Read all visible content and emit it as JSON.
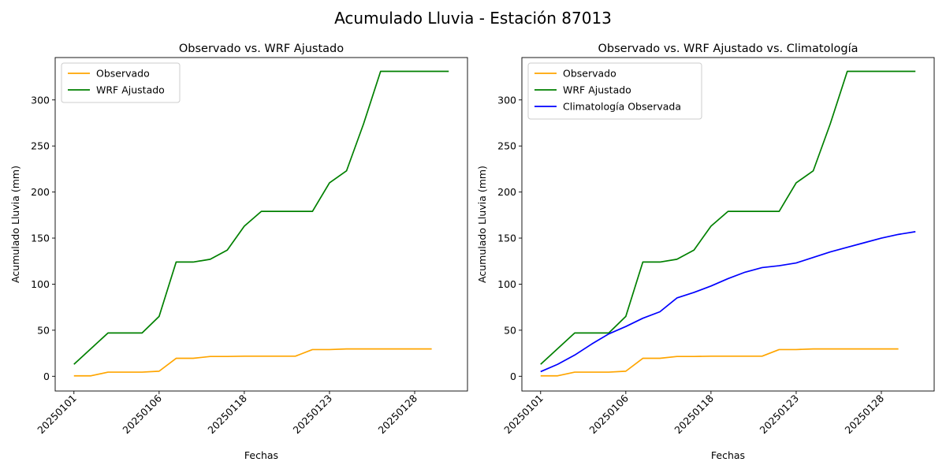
{
  "figure": {
    "suptitle": "Acumulado Lluvia - Estación 87013"
  },
  "chart_data": [
    {
      "type": "line",
      "title": "Observado vs. WRF Ajustado",
      "xlabel": "Fechas",
      "ylabel": "Acumulado Lluvia (mm)",
      "ylim": [
        -16,
        346
      ],
      "xlim": [
        -1.1,
        23.1
      ],
      "yticks": [
        0,
        50,
        100,
        150,
        200,
        250,
        300
      ],
      "xticks": [
        {
          "pos": 0,
          "label": "20250101"
        },
        {
          "pos": 5,
          "label": "20250106"
        },
        {
          "pos": 10,
          "label": "20250118"
        },
        {
          "pos": 15,
          "label": "20250123"
        },
        {
          "pos": 20,
          "label": "20250128"
        }
      ],
      "legend": "top-left",
      "grid": false,
      "series": [
        {
          "name": "Observado",
          "color": "#ffa500",
          "x": [
            0,
            1,
            2,
            3,
            4,
            5,
            6,
            7,
            8,
            9,
            10,
            11,
            12,
            13,
            14,
            15,
            16,
            17,
            18,
            19,
            20,
            21
          ],
          "y": [
            0.5,
            0.5,
            4.5,
            4.5,
            4.5,
            5.5,
            19.5,
            19.5,
            21.5,
            21.5,
            21.8,
            21.8,
            21.8,
            21.8,
            29,
            29,
            29.7,
            29.7,
            29.7,
            29.7,
            29.7,
            29.7
          ]
        },
        {
          "name": "WRF Ajustado",
          "color": "#008000",
          "x": [
            0,
            1,
            2,
            3,
            4,
            5,
            6,
            7,
            8,
            9,
            10,
            11,
            12,
            13,
            14,
            15,
            16,
            17,
            18,
            19,
            20,
            21,
            22
          ],
          "y": [
            13,
            30,
            47,
            47,
            47,
            65,
            124,
            124,
            127,
            137,
            163,
            179,
            179,
            179,
            179,
            210,
            223,
            274,
            331,
            331,
            331,
            331,
            331
          ]
        }
      ]
    },
    {
      "type": "line",
      "title": "Observado vs. WRF Ajustado vs. Climatología",
      "xlabel": "Fechas",
      "ylabel": "Acumulado Lluvia (mm)",
      "ylim": [
        -16,
        346
      ],
      "xlim": [
        -1.1,
        23.1
      ],
      "yticks": [
        0,
        50,
        100,
        150,
        200,
        250,
        300
      ],
      "xticks": [
        {
          "pos": 0,
          "label": "20250101"
        },
        {
          "pos": 5,
          "label": "20250106"
        },
        {
          "pos": 10,
          "label": "20250118"
        },
        {
          "pos": 15,
          "label": "20250123"
        },
        {
          "pos": 20,
          "label": "20250128"
        }
      ],
      "legend": "top-left",
      "grid": false,
      "series": [
        {
          "name": "Observado",
          "color": "#ffa500",
          "x": [
            0,
            1,
            2,
            3,
            4,
            5,
            6,
            7,
            8,
            9,
            10,
            11,
            12,
            13,
            14,
            15,
            16,
            17,
            18,
            19,
            20,
            21
          ],
          "y": [
            0.5,
            0.5,
            4.5,
            4.5,
            4.5,
            5.5,
            19.5,
            19.5,
            21.5,
            21.5,
            21.8,
            21.8,
            21.8,
            21.8,
            29,
            29,
            29.7,
            29.7,
            29.7,
            29.7,
            29.7,
            29.7
          ]
        },
        {
          "name": "WRF Ajustado",
          "color": "#008000",
          "x": [
            0,
            1,
            2,
            3,
            4,
            5,
            6,
            7,
            8,
            9,
            10,
            11,
            12,
            13,
            14,
            15,
            16,
            17,
            18,
            19,
            20,
            21,
            22
          ],
          "y": [
            13,
            30,
            47,
            47,
            47,
            65,
            124,
            124,
            127,
            137,
            163,
            179,
            179,
            179,
            179,
            210,
            223,
            274,
            331,
            331,
            331,
            331,
            331
          ]
        },
        {
          "name": "Climatología Observada",
          "color": "#0000ff",
          "x": [
            0,
            1,
            2,
            3,
            4,
            5,
            6,
            7,
            8,
            9,
            10,
            11,
            12,
            13,
            14,
            15,
            16,
            17,
            18,
            19,
            20,
            21,
            22
          ],
          "y": [
            5,
            13,
            23,
            35,
            46,
            54,
            63,
            70,
            85,
            91,
            98,
            106,
            113,
            118,
            120,
            123,
            129,
            135,
            140,
            145,
            150,
            154,
            157
          ]
        }
      ]
    }
  ]
}
